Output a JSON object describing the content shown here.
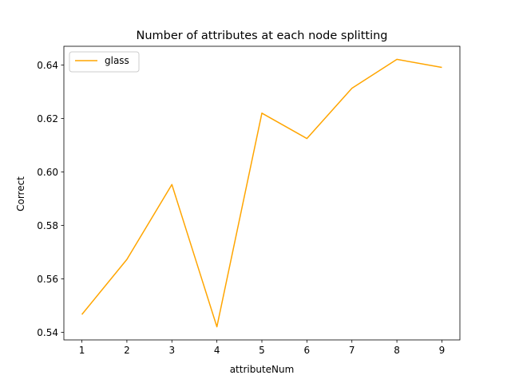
{
  "chart_data": {
    "type": "line",
    "title": "Number of attributes at each node splitting",
    "xlabel": "attributeNum",
    "ylabel": "Correct",
    "x": [
      1,
      2,
      3,
      4,
      5,
      6,
      7,
      8,
      9
    ],
    "series": [
      {
        "name": "glass",
        "color": "#ffa500",
        "values": [
          0.5467,
          0.5673,
          0.5953,
          0.5421,
          0.622,
          0.6125,
          0.6313,
          0.6421,
          0.6391
        ]
      }
    ],
    "xlim": [
      0.6,
      9.4
    ],
    "ylim": [
      0.5372,
      0.647
    ],
    "xticks": [
      1,
      2,
      3,
      4,
      5,
      6,
      7,
      8,
      9
    ],
    "xtick_labels": [
      "1",
      "2",
      "3",
      "4",
      "5",
      "6",
      "7",
      "8",
      "9"
    ],
    "yticks": [
      0.54,
      0.56,
      0.58,
      0.6,
      0.62,
      0.64
    ],
    "ytick_labels": [
      "0.54",
      "0.56",
      "0.58",
      "0.60",
      "0.62",
      "0.64"
    ],
    "grid": false,
    "legend_position": "upper-left"
  }
}
